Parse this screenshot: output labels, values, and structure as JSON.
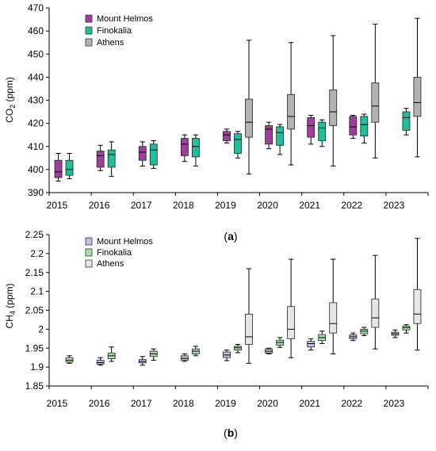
{
  "chart_data": [
    {
      "type": "boxplot",
      "ylabel": "CO2 (ppm)",
      "ylabel_main": "CO",
      "ylabel_sub": "2",
      "ylabel_unit": " (ppm)",
      "ylim": [
        390,
        470
      ],
      "yticks": [
        390,
        400,
        410,
        420,
        430,
        440,
        450,
        460,
        470
      ],
      "categories": [
        "2015",
        "2016",
        "2017",
        "2018",
        "2019",
        "2020",
        "2021",
        "2022",
        "2023"
      ],
      "panel_label": "(a)",
      "legend_position": "top-left",
      "grid": false,
      "series": [
        {
          "name": "Mount Helmos",
          "color": "#a23da0",
          "boxes": [
            {
              "category": "2015",
              "min": 395,
              "q1": 396.5,
              "median": 399,
              "q3": 404,
              "max": 407
            },
            {
              "category": "2016",
              "min": 399.5,
              "q1": 401,
              "median": 406,
              "q3": 408,
              "max": 410.5
            },
            {
              "category": "2017",
              "min": 401.5,
              "q1": 404,
              "median": 407.5,
              "q3": 410,
              "max": 412
            },
            {
              "category": "2018",
              "min": 403.5,
              "q1": 406,
              "median": 411,
              "q3": 413.5,
              "max": 415
            },
            {
              "category": "2019",
              "min": 411.5,
              "q1": 412.5,
              "median": 415,
              "q3": 416.5,
              "max": 417.5
            },
            {
              "category": "2020",
              "min": 409,
              "q1": 411,
              "median": 417.5,
              "q3": 419,
              "max": 420.5
            },
            {
              "category": "2021",
              "min": 411,
              "q1": 414,
              "median": 419,
              "q3": 422.5,
              "max": 423.5
            },
            {
              "category": "2022",
              "min": 413.5,
              "q1": 415,
              "median": 418.5,
              "q3": 423,
              "max": 423.5
            }
          ]
        },
        {
          "name": "Finokalia",
          "color": "#1fbf9a",
          "boxes": [
            {
              "category": "2015",
              "min": 396,
              "q1": 397.5,
              "median": 400,
              "q3": 404,
              "max": 407
            },
            {
              "category": "2016",
              "min": 397,
              "q1": 401,
              "median": 406.5,
              "q3": 408.5,
              "max": 412
            },
            {
              "category": "2017",
              "min": 400.5,
              "q1": 402,
              "median": 408.5,
              "q3": 411,
              "max": 412.5
            },
            {
              "category": "2018",
              "min": 401.5,
              "q1": 405.5,
              "median": 410,
              "q3": 413.5,
              "max": 415
            },
            {
              "category": "2019",
              "min": 405,
              "q1": 407,
              "median": 413,
              "q3": 415.5,
              "max": 416.5
            },
            {
              "category": "2020",
              "min": 406.5,
              "q1": 410.5,
              "median": 416,
              "q3": 418.5,
              "max": 419.5
            },
            {
              "category": "2021",
              "min": 410,
              "q1": 412.5,
              "median": 418,
              "q3": 420.5,
              "max": 421.5
            },
            {
              "category": "2022",
              "min": 411.5,
              "q1": 414.5,
              "median": 419.5,
              "q3": 423,
              "max": 424
            },
            {
              "category": "2023",
              "min": 415,
              "q1": 417,
              "median": 422.5,
              "q3": 425,
              "max": 426.5
            }
          ]
        },
        {
          "name": "Athens",
          "color": "#b3b3b3",
          "boxes": [
            {
              "category": "2019",
              "min": 398,
              "q1": 414,
              "median": 420.5,
              "q3": 430.5,
              "max": 456
            },
            {
              "category": "2020",
              "min": 402,
              "q1": 417.5,
              "median": 423,
              "q3": 432.5,
              "max": 455
            },
            {
              "category": "2021",
              "min": 401.5,
              "q1": 419,
              "median": 425,
              "q3": 434.5,
              "max": 458
            },
            {
              "category": "2022",
              "min": 405,
              "q1": 420.5,
              "median": 427.5,
              "q3": 437.5,
              "max": 463
            },
            {
              "category": "2023",
              "min": 405.5,
              "q1": 423,
              "median": 429,
              "q3": 440,
              "max": 465.5
            }
          ]
        }
      ]
    },
    {
      "type": "boxplot",
      "ylabel": "CH4 (ppm)",
      "ylabel_main": "CH",
      "ylabel_sub": "4",
      "ylabel_unit": " (ppm)",
      "ylim": [
        1.85,
        2.25
      ],
      "yticks": [
        1.85,
        1.9,
        1.95,
        2,
        2.05,
        2.1,
        2.15,
        2.2,
        2.25
      ],
      "ytick_labels": [
        "1.85",
        "1.9",
        "1.95",
        "2",
        "2.05",
        "2.1",
        "2.15",
        "2.2",
        "2.25"
      ],
      "categories": [
        "2015",
        "2016",
        "2017",
        "2018",
        "2019",
        "2020",
        "2021",
        "2022",
        "2023"
      ],
      "panel_label": "(b)",
      "legend_position": "top-left",
      "grid": false,
      "series": [
        {
          "name": "Mount Helmos",
          "color": "#bfc0e6",
          "boxes": [
            {
              "category": "2016",
              "min": 1.905,
              "q1": 1.908,
              "median": 1.912,
              "q3": 1.918,
              "max": 1.925
            },
            {
              "category": "2017",
              "min": 1.905,
              "q1": 1.911,
              "median": 1.915,
              "q3": 1.92,
              "max": 1.928
            },
            {
              "category": "2018",
              "min": 1.915,
              "q1": 1.918,
              "median": 1.923,
              "q3": 1.93,
              "max": 1.935
            },
            {
              "category": "2019",
              "min": 1.917,
              "q1": 1.925,
              "median": 1.932,
              "q3": 1.94,
              "max": 1.945
            },
            {
              "category": "2020",
              "min": 1.935,
              "q1": 1.937,
              "median": 1.942,
              "q3": 1.948,
              "max": 1.95
            },
            {
              "category": "2021",
              "min": 1.945,
              "q1": 1.953,
              "median": 1.962,
              "q3": 1.968,
              "max": 1.975
            },
            {
              "category": "2022",
              "min": 1.97,
              "q1": 1.975,
              "median": 1.98,
              "q3": 1.985,
              "max": 1.99
            },
            {
              "category": "2023",
              "min": 1.978,
              "q1": 1.984,
              "median": 1.988,
              "q3": 1.992,
              "max": 1.998
            }
          ]
        },
        {
          "name": "Finokalia",
          "color": "#a6e3a6",
          "boxes": [
            {
              "category": "2015",
              "min": 1.91,
              "q1": 1.913,
              "median": 1.918,
              "q3": 1.925,
              "max": 1.93
            },
            {
              "category": "2016",
              "min": 1.915,
              "q1": 1.922,
              "median": 1.93,
              "q3": 1.937,
              "max": 1.953
            },
            {
              "category": "2017",
              "min": 1.918,
              "q1": 1.928,
              "median": 1.935,
              "q3": 1.942,
              "max": 1.948
            },
            {
              "category": "2018",
              "min": 1.93,
              "q1": 1.935,
              "median": 1.942,
              "q3": 1.948,
              "max": 1.955
            },
            {
              "category": "2019",
              "min": 1.938,
              "q1": 1.945,
              "median": 1.951,
              "q3": 1.955,
              "max": 1.96
            },
            {
              "category": "2020",
              "min": 1.952,
              "q1": 1.958,
              "median": 1.965,
              "q3": 1.971,
              "max": 1.978
            },
            {
              "category": "2021",
              "min": 1.962,
              "q1": 1.97,
              "median": 1.978,
              "q3": 1.986,
              "max": 1.995
            },
            {
              "category": "2022",
              "min": 1.983,
              "q1": 1.988,
              "median": 1.995,
              "q3": 2.0,
              "max": 2.005
            },
            {
              "category": "2023",
              "min": 1.99,
              "q1": 1.998,
              "median": 2.004,
              "q3": 2.008,
              "max": 2.012
            }
          ]
        },
        {
          "name": "Athens",
          "color": "#e6e6e6",
          "boxes": [
            {
              "category": "2019",
              "min": 1.91,
              "q1": 1.96,
              "median": 1.98,
              "q3": 2.04,
              "max": 2.16
            },
            {
              "category": "2020",
              "min": 1.925,
              "q1": 1.975,
              "median": 2.0,
              "q3": 2.06,
              "max": 2.185
            },
            {
              "category": "2021",
              "min": 1.935,
              "q1": 1.99,
              "median": 2.015,
              "q3": 2.07,
              "max": 2.185
            },
            {
              "category": "2022",
              "min": 1.948,
              "q1": 2.005,
              "median": 2.03,
              "q3": 2.08,
              "max": 2.195
            },
            {
              "category": "2023",
              "min": 1.945,
              "q1": 2.015,
              "median": 2.04,
              "q3": 2.105,
              "max": 2.24
            }
          ]
        }
      ]
    }
  ]
}
